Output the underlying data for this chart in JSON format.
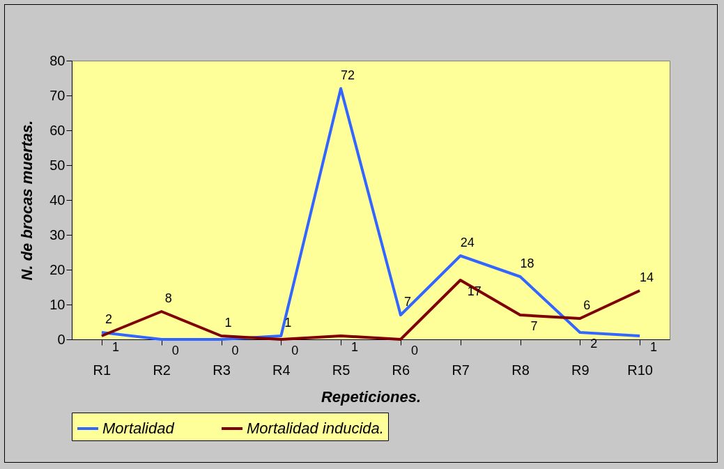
{
  "chart_data": {
    "type": "line",
    "xlabel": "Repeticiones.",
    "ylabel": "N. de brocas muertas.",
    "categories": [
      "R1",
      "R2",
      "R3",
      "R4",
      "R5",
      "R6",
      "R7",
      "R8",
      "R9",
      "R10"
    ],
    "series": [
      {
        "name": "Mortalidad",
        "color": "#3366ff",
        "values": [
          2,
          0,
          0,
          1,
          72,
          7,
          24,
          18,
          2,
          1
        ]
      },
      {
        "name": "Mortalidad inducida.",
        "color": "#800000",
        "values": [
          1,
          8,
          1,
          0,
          1,
          0,
          17,
          7,
          6,
          14
        ]
      }
    ],
    "ylim": [
      0,
      80
    ],
    "yticks": [
      0,
      10,
      20,
      30,
      40,
      50,
      60,
      70,
      80
    ],
    "grid": false,
    "legend": "bottom",
    "data_labels": true,
    "marker": "none",
    "line_style": "solid"
  }
}
